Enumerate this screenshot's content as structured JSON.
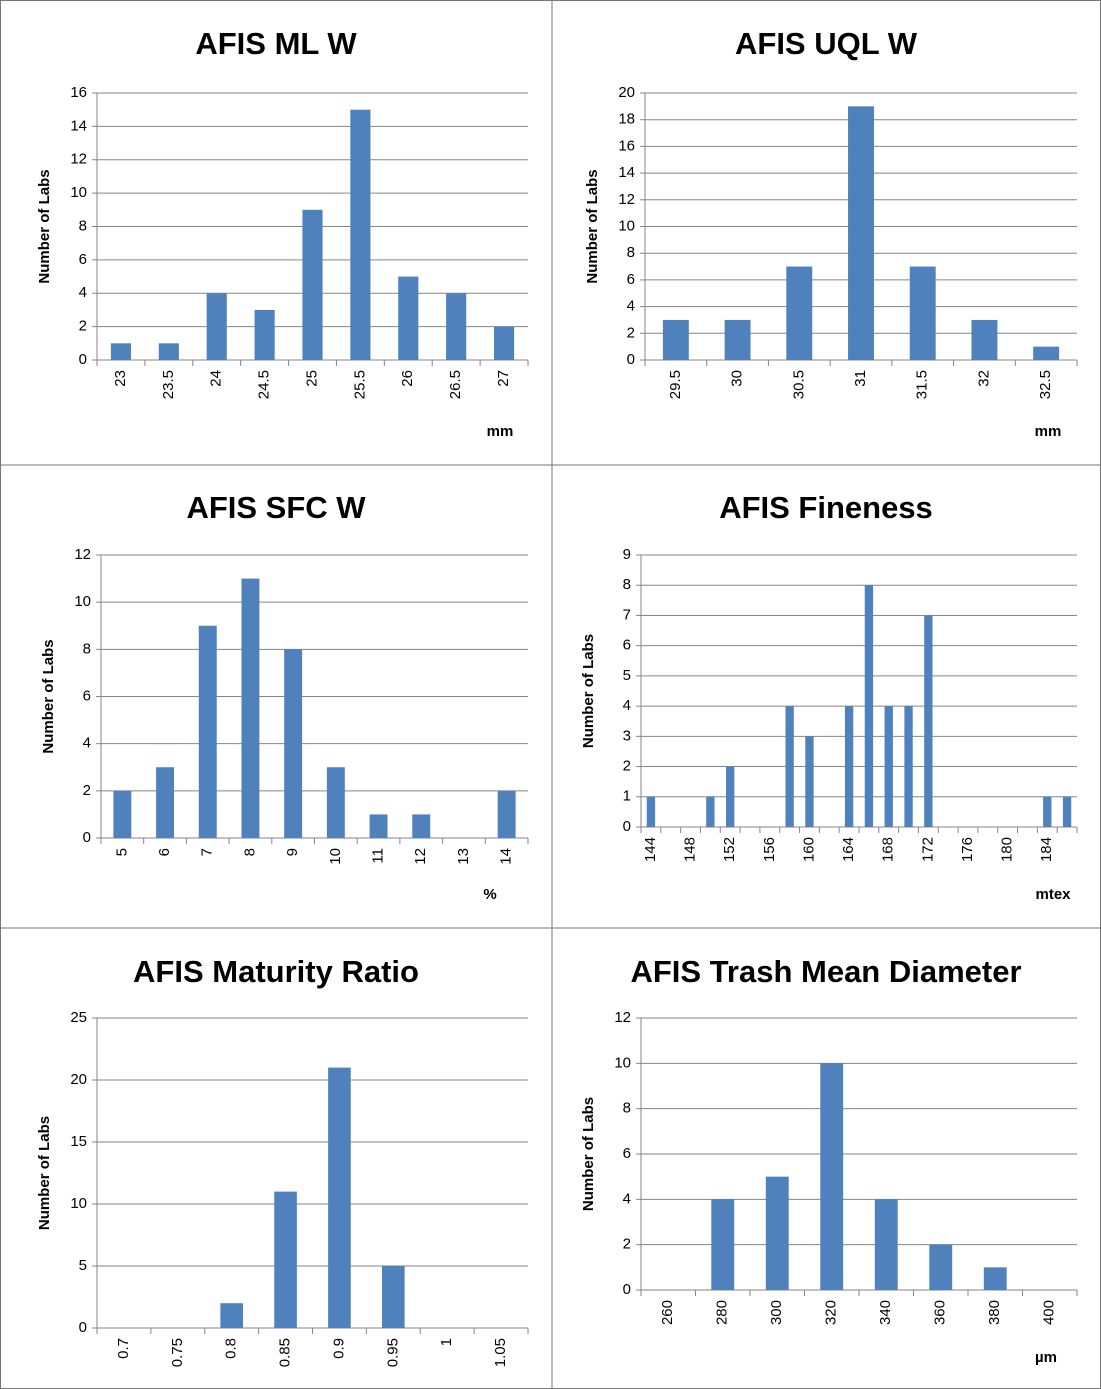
{
  "chart_data": [
    {
      "type": "bar",
      "title": "AFIS ML W",
      "y_label": "Number of Labs",
      "x_label": "mm",
      "categories": [
        "23",
        "23.5",
        "24",
        "24.5",
        "25",
        "25.5",
        "26",
        "26.5",
        "27"
      ],
      "values": [
        1,
        1,
        4,
        3,
        9,
        15,
        5,
        4,
        2
      ],
      "color": "#4f81bd",
      "ylim": [
        0,
        16
      ],
      "yticks": [
        0,
        2,
        4,
        6,
        8,
        10,
        12,
        14,
        16
      ],
      "grid": true
    },
    {
      "type": "bar",
      "title": "AFIS UQL W",
      "y_label": "Number of Labs",
      "x_label": "mm",
      "categories": [
        "29.5",
        "30",
        "30.5",
        "31",
        "31.5",
        "32",
        "32.5"
      ],
      "values": [
        3,
        3,
        7,
        19,
        7,
        3,
        1
      ],
      "color": "#4f81bd",
      "ylim": [
        0,
        20
      ],
      "yticks": [
        0,
        2,
        4,
        6,
        8,
        10,
        12,
        14,
        16,
        18,
        20
      ],
      "grid": true
    },
    {
      "type": "bar",
      "title": "AFIS SFC W",
      "y_label": "Number of Labs",
      "x_label": "%",
      "categories": [
        "5",
        "6",
        "7",
        "8",
        "9",
        "10",
        "11",
        "12",
        "13",
        "14"
      ],
      "values": [
        2,
        3,
        9,
        11,
        8,
        3,
        1,
        1,
        0,
        2
      ],
      "color": "#4f81bd",
      "ylim": [
        0,
        12
      ],
      "yticks": [
        0,
        2,
        4,
        6,
        8,
        10,
        12
      ],
      "grid": true
    },
    {
      "type": "bar",
      "title": "AFIS Fineness",
      "y_label": "Number of Labs",
      "x_label": "mtex",
      "categories": [
        "144",
        null,
        "148",
        null,
        "152",
        null,
        "156",
        null,
        "160",
        null,
        "164",
        null,
        "168",
        null,
        "172",
        null,
        "176",
        null,
        "180",
        null,
        "184",
        null
      ],
      "values": [
        1,
        0,
        0,
        1,
        2,
        0,
        0,
        4,
        3,
        0,
        4,
        8,
        4,
        4,
        7,
        0,
        0,
        0,
        0,
        0,
        1,
        1
      ],
      "color": "#4f81bd",
      "ylim": [
        0,
        9
      ],
      "yticks": [
        0,
        1,
        2,
        3,
        4,
        5,
        6,
        7,
        8,
        9
      ],
      "grid": true
    },
    {
      "type": "bar",
      "title": "AFIS Maturity Ratio",
      "y_label": "Number of Labs",
      "categories": [
        "0.7",
        "0.75",
        "0.8",
        "0.85",
        "0.9",
        "0.95",
        "1",
        "1.05"
      ],
      "values": [
        0,
        0,
        2,
        11,
        21,
        5,
        0,
        0
      ],
      "color": "#4f81bd",
      "ylim": [
        0,
        25
      ],
      "yticks": [
        0,
        5,
        10,
        15,
        20,
        25
      ],
      "grid": true
    },
    {
      "type": "bar",
      "title": "AFIS Trash Mean Diameter",
      "y_label": "Number of Labs",
      "x_label": "µm",
      "categories": [
        "260",
        "280",
        "300",
        "320",
        "340",
        "360",
        "380",
        "400"
      ],
      "values": [
        0,
        4,
        5,
        10,
        4,
        2,
        1,
        0
      ],
      "color": "#4f81bd",
      "ylim": [
        0,
        12
      ],
      "yticks": [
        0,
        2,
        4,
        6,
        8,
        10,
        12
      ],
      "grid": true
    }
  ]
}
